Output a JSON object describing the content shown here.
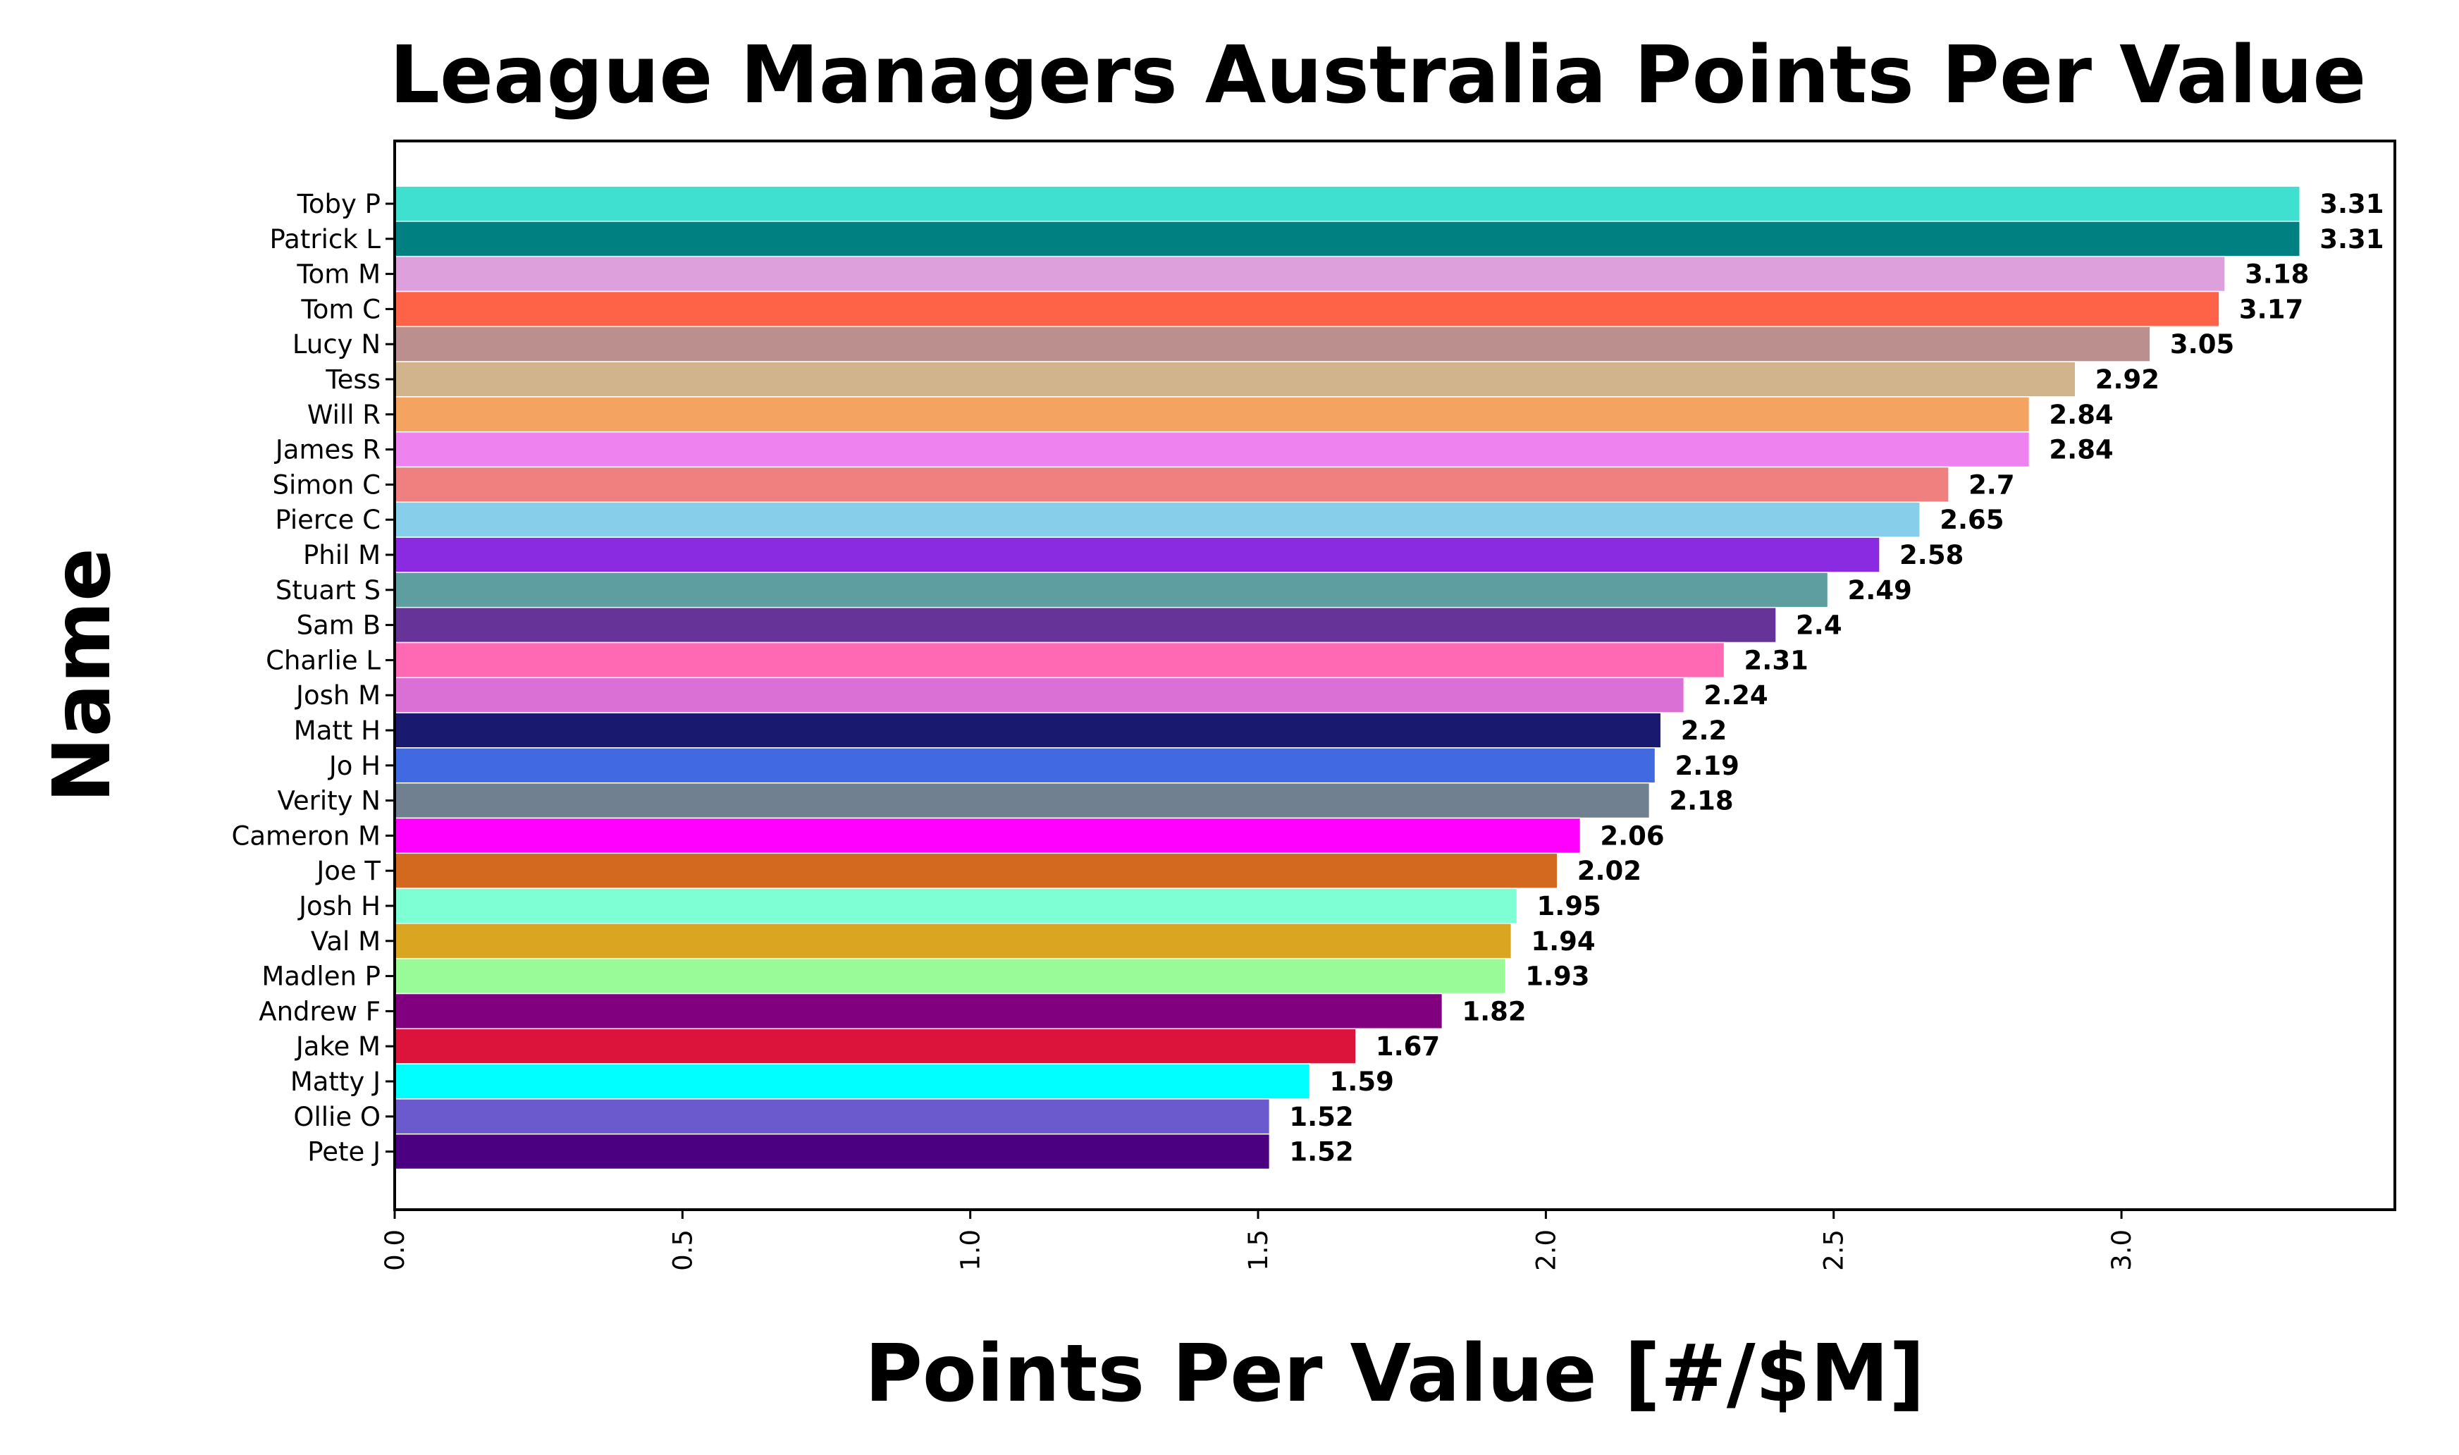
{
  "chart_data": {
    "type": "bar",
    "orientation": "horizontal",
    "title": "League Managers Australia Points Per Value",
    "xlabel": "Points Per Value [#/$M]",
    "ylabel": "Name",
    "xlim": [
      0,
      3.475
    ],
    "xticks": [
      "0.0",
      "0.5",
      "1.0",
      "1.5",
      "2.0",
      "2.5",
      "3.0"
    ],
    "grid": false,
    "legend": "none",
    "categories": [
      "Toby P",
      "Patrick L",
      "Tom M",
      "Tom C",
      "Lucy N",
      "Tess",
      "Will R",
      "James R",
      "Simon C",
      "Pierce C",
      "Phil M",
      "Stuart S",
      "Sam B",
      "Charlie L",
      "Josh M",
      "Matt H",
      "Jo H",
      "Verity N",
      "Cameron M",
      "Joe T",
      "Josh H",
      "Val M",
      "Madlen P",
      "Andrew F",
      "Jake M",
      "Matty J",
      "Ollie O",
      "Pete J"
    ],
    "values": [
      3.31,
      3.31,
      3.18,
      3.17,
      3.05,
      2.92,
      2.84,
      2.84,
      2.7,
      2.65,
      2.58,
      2.49,
      2.4,
      2.31,
      2.24,
      2.2,
      2.19,
      2.18,
      2.06,
      2.02,
      1.95,
      1.94,
      1.93,
      1.82,
      1.67,
      1.59,
      1.52,
      1.52
    ],
    "value_labels": [
      "3.31",
      "3.31",
      "3.18",
      "3.17",
      "3.05",
      "2.92",
      "2.84",
      "2.84",
      "2.7",
      "2.65",
      "2.58",
      "2.49",
      "2.4",
      "2.31",
      "2.24",
      "2.2",
      "2.19",
      "2.18",
      "2.06",
      "2.02",
      "1.95",
      "1.94",
      "1.93",
      "1.82",
      "1.67",
      "1.59",
      "1.52",
      "1.52"
    ],
    "colors": [
      "#40e0d0",
      "#008080",
      "#dda0dd",
      "#ff6347",
      "#bc8f8f",
      "#d2b48c",
      "#f4a460",
      "#ee82ee",
      "#f08080",
      "#87ceeb",
      "#8a2be2",
      "#5f9ea0",
      "#663399",
      "#ff69b4",
      "#da70d6",
      "#191970",
      "#4169e1",
      "#708090",
      "#ff00ff",
      "#d2691e",
      "#7fffd4",
      "#daa520",
      "#98fb98",
      "#800080",
      "#dc143c",
      "#00ffff",
      "#6a5acd",
      "#4b0082"
    ]
  }
}
